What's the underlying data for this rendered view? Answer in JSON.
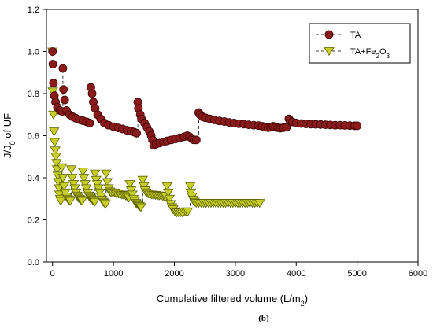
{
  "chart_data": {
    "type": "scatter",
    "caption": "(b)",
    "xlabel": "Cumulative filtered volume (L/m²)",
    "xlabel_parts": [
      "Cumulative filtered volume (L/m",
      "2",
      ")"
    ],
    "ylabel": "J/J₀ of UF",
    "ylabel_parts": [
      "J/J",
      "0",
      " of UF"
    ],
    "xlim": [
      -100,
      6000
    ],
    "ylim": [
      0.0,
      1.2
    ],
    "xticks": [
      0,
      1000,
      2000,
      3000,
      4000,
      5000,
      6000
    ],
    "yticks": [
      0.0,
      0.2,
      0.4,
      0.6,
      0.8,
      1.0,
      1.2
    ],
    "xtick_labels": [
      "0",
      "1000",
      "2000",
      "3000",
      "4000",
      "5000",
      "6000"
    ],
    "ytick_labels": [
      "0.0",
      "0.2",
      "0.4",
      "0.6",
      "0.8",
      "1.0",
      "1.2"
    ],
    "grid": false,
    "legend_position": "top-right",
    "series": [
      {
        "name": "TA",
        "name_parts": [
          "TA"
        ],
        "marker": "circle",
        "color": "#8b1a1a",
        "edge": "#3a0000",
        "segments": [
          [
            [
              0,
              1.0
            ],
            [
              5,
              0.94
            ],
            [
              15,
              0.85
            ],
            [
              30,
              0.79
            ],
            [
              50,
              0.76
            ],
            [
              80,
              0.735
            ],
            [
              120,
              0.72
            ],
            [
              160,
              0.715
            ]
          ],
          [
            [
              170,
              0.92
            ],
            [
              180,
              0.82
            ],
            [
              200,
              0.77
            ],
            [
              230,
              0.72
            ],
            [
              280,
              0.7
            ],
            [
              330,
              0.69
            ],
            [
              380,
              0.683
            ],
            [
              440,
              0.676
            ],
            [
              500,
              0.671
            ],
            [
              560,
              0.666
            ],
            [
              610,
              0.66
            ]
          ],
          [
            [
              630,
              0.83
            ],
            [
              650,
              0.8
            ],
            [
              670,
              0.76
            ],
            [
              700,
              0.73
            ],
            [
              740,
              0.7
            ],
            [
              790,
              0.68
            ],
            [
              850,
              0.66
            ],
            [
              920,
              0.65
            ],
            [
              1000,
              0.643
            ],
            [
              1080,
              0.637
            ],
            [
              1150,
              0.632
            ],
            [
              1220,
              0.626
            ],
            [
              1290,
              0.622
            ],
            [
              1340,
              0.617
            ],
            [
              1380,
              0.612
            ]
          ],
          [
            [
              1400,
              0.76
            ],
            [
              1410,
              0.73
            ],
            [
              1440,
              0.7
            ],
            [
              1460,
              0.68
            ],
            [
              1510,
              0.66
            ],
            [
              1550,
              0.64
            ],
            [
              1590,
              0.62
            ],
            [
              1620,
              0.6
            ],
            [
              1640,
              0.58
            ],
            [
              1660,
              0.555
            ],
            [
              1700,
              0.56
            ],
            [
              1760,
              0.565
            ],
            [
              1820,
              0.57
            ],
            [
              1880,
              0.575
            ],
            [
              1950,
              0.58
            ],
            [
              2020,
              0.585
            ],
            [
              2090,
              0.59
            ],
            [
              2160,
              0.595
            ],
            [
              2210,
              0.6
            ],
            [
              2250,
              0.595
            ],
            [
              2290,
              0.585
            ],
            [
              2320,
              0.58
            ],
            [
              2360,
              0.58
            ]
          ],
          [
            [
              2400,
              0.71
            ],
            [
              2420,
              0.7
            ],
            [
              2460,
              0.69
            ],
            [
              2510,
              0.685
            ],
            [
              2580,
              0.68
            ],
            [
              2660,
              0.675
            ],
            [
              2740,
              0.67
            ],
            [
              2820,
              0.667
            ],
            [
              2900,
              0.663
            ],
            [
              2980,
              0.66
            ],
            [
              3060,
              0.657
            ],
            [
              3140,
              0.655
            ],
            [
              3220,
              0.652
            ],
            [
              3300,
              0.65
            ],
            [
              3380,
              0.648
            ],
            [
              3440,
              0.645
            ],
            [
              3490,
              0.64
            ],
            [
              3540,
              0.638
            ],
            [
              3580,
              0.64
            ],
            [
              3620,
              0.645
            ],
            [
              3660,
              0.64
            ],
            [
              3700,
              0.638
            ],
            [
              3740,
              0.636
            ],
            [
              3790,
              0.638
            ],
            [
              3840,
              0.64
            ]
          ],
          [
            [
              3880,
              0.68
            ],
            [
              3900,
              0.67
            ],
            [
              3940,
              0.665
            ],
            [
              4000,
              0.66
            ],
            [
              4080,
              0.658
            ],
            [
              4160,
              0.656
            ],
            [
              4240,
              0.655
            ],
            [
              4320,
              0.654
            ],
            [
              4400,
              0.653
            ],
            [
              4480,
              0.652
            ],
            [
              4560,
              0.651
            ],
            [
              4640,
              0.65
            ],
            [
              4720,
              0.65
            ],
            [
              4800,
              0.649
            ],
            [
              4880,
              0.648
            ],
            [
              4960,
              0.647
            ],
            [
              5000,
              0.647
            ]
          ]
        ]
      },
      {
        "name": "TA+Fe₂O₃",
        "name_parts": [
          "TA+Fe",
          "2",
          "O",
          "3"
        ],
        "marker": "triangle-down",
        "color": "#c8cf28",
        "edge": "#5c6000",
        "segments": [
          [
            [
              0,
              1.0
            ],
            [
              5,
              0.81
            ],
            [
              15,
              0.7
            ],
            [
              25,
              0.62
            ],
            [
              35,
              0.57
            ],
            [
              45,
              0.53
            ],
            [
              55,
              0.5
            ],
            [
              65,
              0.47
            ],
            [
              75,
              0.44
            ],
            [
              85,
              0.41
            ],
            [
              95,
              0.38
            ],
            [
              105,
              0.35
            ],
            [
              115,
              0.32
            ],
            [
              125,
              0.3
            ],
            [
              135,
              0.29
            ]
          ],
          [
            [
              155,
              0.45
            ],
            [
              170,
              0.4
            ],
            [
              190,
              0.36
            ],
            [
              210,
              0.33
            ],
            [
              230,
              0.31
            ],
            [
              250,
              0.3
            ],
            [
              270,
              0.295
            ],
            [
              290,
              0.29
            ]
          ],
          [
            [
              310,
              0.44
            ],
            [
              325,
              0.4
            ],
            [
              345,
              0.37
            ],
            [
              365,
              0.35
            ],
            [
              385,
              0.33
            ],
            [
              405,
              0.315
            ],
            [
              425,
              0.305
            ],
            [
              445,
              0.3
            ],
            [
              465,
              0.295
            ],
            [
              485,
              0.29
            ]
          ],
          [
            [
              500,
              0.43
            ],
            [
              515,
              0.4
            ],
            [
              535,
              0.37
            ],
            [
              555,
              0.35
            ],
            [
              575,
              0.33
            ],
            [
              595,
              0.315
            ],
            [
              615,
              0.305
            ],
            [
              635,
              0.3
            ],
            [
              655,
              0.295
            ],
            [
              675,
              0.29
            ],
            [
              690,
              0.285
            ]
          ],
          [
            [
              700,
              0.42
            ],
            [
              715,
              0.39
            ],
            [
              735,
              0.37
            ],
            [
              755,
              0.35
            ],
            [
              775,
              0.33
            ],
            [
              795,
              0.31
            ],
            [
              815,
              0.295
            ],
            [
              835,
              0.285
            ],
            [
              855,
              0.28
            ],
            [
              870,
              0.275
            ]
          ],
          [
            [
              880,
              0.42
            ],
            [
              900,
              0.38
            ],
            [
              920,
              0.35
            ],
            [
              940,
              0.335
            ],
            [
              960,
              0.33
            ],
            [
              990,
              0.33
            ],
            [
              1020,
              0.33
            ],
            [
              1050,
              0.325
            ],
            [
              1080,
              0.325
            ],
            [
              1110,
              0.32
            ],
            [
              1140,
              0.32
            ],
            [
              1170,
              0.318
            ],
            [
              1200,
              0.315
            ],
            [
              1230,
              0.31
            ],
            [
              1250,
              0.305
            ]
          ],
          [
            [
              1270,
              0.37
            ],
            [
              1290,
              0.34
            ],
            [
              1310,
              0.32
            ],
            [
              1330,
              0.3
            ],
            [
              1350,
              0.29
            ],
            [
              1370,
              0.28
            ],
            [
              1390,
              0.275
            ],
            [
              1410,
              0.27
            ],
            [
              1430,
              0.265
            ],
            [
              1450,
              0.26
            ]
          ],
          [
            [
              1480,
              0.39
            ],
            [
              1500,
              0.36
            ],
            [
              1520,
              0.34
            ],
            [
              1540,
              0.33
            ],
            [
              1570,
              0.325
            ],
            [
              1600,
              0.32
            ],
            [
              1630,
              0.32
            ],
            [
              1660,
              0.318
            ],
            [
              1690,
              0.318
            ],
            [
              1720,
              0.315
            ],
            [
              1750,
              0.315
            ],
            [
              1780,
              0.315
            ],
            [
              1810,
              0.312
            ],
            [
              1840,
              0.31
            ],
            [
              1860,
              0.31
            ]
          ],
          [
            [
              1880,
              0.36
            ],
            [
              1900,
              0.33
            ],
            [
              1920,
              0.3
            ],
            [
              1940,
              0.275
            ],
            [
              1960,
              0.26
            ],
            [
              1980,
              0.25
            ],
            [
              2010,
              0.24
            ],
            [
              2040,
              0.235
            ],
            [
              2070,
              0.235
            ],
            [
              2100,
              0.235
            ],
            [
              2130,
              0.235
            ],
            [
              2160,
              0.24
            ],
            [
              2190,
              0.24
            ],
            [
              2220,
              0.24
            ]
          ],
          [
            [
              2260,
              0.36
            ],
            [
              2270,
              0.33
            ],
            [
              2290,
              0.31
            ],
            [
              2310,
              0.295
            ],
            [
              2330,
              0.285
            ],
            [
              2360,
              0.28
            ],
            [
              2400,
              0.28
            ],
            [
              2440,
              0.28
            ],
            [
              2480,
              0.28
            ],
            [
              2520,
              0.28
            ],
            [
              2560,
              0.28
            ],
            [
              2600,
              0.28
            ],
            [
              2640,
              0.28
            ],
            [
              2680,
              0.28
            ],
            [
              2720,
              0.28
            ],
            [
              2760,
              0.28
            ],
            [
              2800,
              0.28
            ],
            [
              2840,
              0.28
            ],
            [
              2880,
              0.28
            ],
            [
              2920,
              0.28
            ],
            [
              2960,
              0.28
            ],
            [
              3000,
              0.28
            ],
            [
              3040,
              0.28
            ],
            [
              3080,
              0.28
            ],
            [
              3120,
              0.28
            ],
            [
              3160,
              0.28
            ],
            [
              3200,
              0.28
            ],
            [
              3240,
              0.28
            ],
            [
              3280,
              0.28
            ],
            [
              3320,
              0.28
            ],
            [
              3360,
              0.28
            ],
            [
              3400,
              0.28
            ]
          ]
        ]
      }
    ]
  }
}
